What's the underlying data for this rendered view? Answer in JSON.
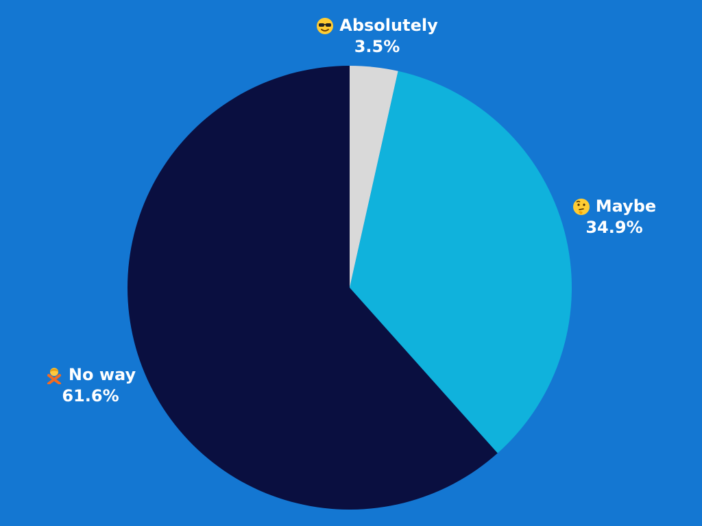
{
  "colors": {
    "background": "#1477D2",
    "label_text": "#FFFFFF"
  },
  "chart_data": {
    "type": "pie",
    "slices": [
      {
        "label": "Absolutely",
        "percent_label": "3.5%",
        "value": 3.5,
        "color": "#D9D9D9",
        "icon": "sunglasses-face-icon"
      },
      {
        "label": "Maybe",
        "percent_label": "34.9%",
        "value": 34.9,
        "color": "#10B2DC",
        "icon": "thinking-face-icon"
      },
      {
        "label": "No way",
        "percent_label": "61.6%",
        "value": 61.6,
        "color": "#0A0F40",
        "icon": "person-gesturing-no-icon"
      }
    ],
    "start_angle_deg": 0,
    "direction": "clockwise",
    "legend": "none"
  }
}
